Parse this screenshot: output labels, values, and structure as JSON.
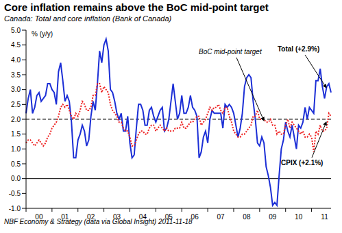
{
  "chart_data": {
    "type": "line",
    "title": "Core inflation remains above the BoC mid-point target",
    "subtitle": "Canada: Total and core inflation (Bank of Canada)",
    "y_label": "% (y/y)",
    "source": "NBF Economy & Strategy (data via Global Insight) 2011-11-18",
    "categories": [
      null,
      null,
      null,
      null,
      null,
      null,
      "00",
      null,
      null,
      null,
      null,
      null,
      null,
      null,
      null,
      null,
      null,
      null,
      "01",
      null,
      null,
      null,
      null,
      null,
      null,
      null,
      null,
      null,
      null,
      null,
      "02",
      null,
      null,
      null,
      null,
      null,
      null,
      null,
      null,
      null,
      null,
      null,
      "03",
      null,
      null,
      null,
      null,
      null,
      null,
      null,
      null,
      null,
      null,
      null,
      "04",
      null,
      null,
      null,
      null,
      null,
      null,
      null,
      null,
      null,
      null,
      null,
      "05",
      null,
      null,
      null,
      null,
      null,
      null,
      null,
      null,
      null,
      null,
      null,
      "06",
      null,
      null,
      null,
      null,
      null,
      null,
      null,
      null,
      null,
      null,
      null,
      "07",
      null,
      null,
      null,
      null,
      null,
      null,
      null,
      null,
      null,
      null,
      null,
      "08",
      null,
      null,
      null,
      null,
      null,
      null,
      null,
      null,
      null,
      null,
      null,
      "09",
      null,
      null,
      null,
      null,
      null,
      null,
      null,
      null,
      null,
      null,
      null,
      "10",
      null,
      null,
      null,
      null,
      null,
      null,
      null,
      null,
      null,
      null,
      null,
      "11",
      null,
      null,
      null
    ],
    "series": [
      {
        "name": "Total (+2.9%)",
        "color": "#1c2fd6",
        "line_style": "solid",
        "values": [
          2.2,
          2.7,
          3.0,
          2.2,
          2.4,
          2.8,
          2.9,
          2.6,
          2.7,
          2.8,
          3.2,
          3.2,
          3.0,
          2.9,
          2.5,
          3.6,
          3.9,
          3.3,
          2.6,
          2.8,
          2.6,
          1.9,
          0.7,
          0.7,
          1.3,
          1.5,
          1.8,
          1.6,
          1.1,
          1.3,
          2.1,
          2.6,
          2.3,
          3.2,
          4.3,
          3.9,
          4.5,
          4.7,
          4.3,
          3.0,
          2.9,
          2.6,
          2.2,
          2.0,
          2.2,
          1.6,
          1.6,
          2.1,
          1.2,
          0.7,
          0.8,
          1.7,
          2.5,
          2.5,
          2.3,
          1.8,
          1.8,
          2.3,
          2.4,
          2.1,
          1.9,
          2.1,
          2.3,
          2.4,
          1.6,
          1.7,
          2.0,
          2.6,
          3.2,
          2.6,
          2.0,
          2.2,
          2.8,
          2.2,
          2.2,
          2.4,
          2.8,
          2.4,
          2.3,
          2.1,
          0.7,
          0.9,
          1.4,
          1.6,
          1.2,
          2.0,
          2.3,
          2.2,
          2.2,
          2.2,
          2.2,
          1.7,
          2.5,
          2.4,
          2.5,
          2.4,
          2.2,
          1.8,
          1.4,
          1.7,
          2.2,
          3.1,
          3.4,
          3.5,
          3.4,
          2.6,
          2.0,
          1.2,
          1.1,
          1.4,
          1.2,
          0.4,
          0.1,
          -0.3,
          -0.9,
          -0.8,
          -0.9,
          0.1,
          1.0,
          1.3,
          1.9,
          1.6,
          1.4,
          1.8,
          1.4,
          1.0,
          1.8,
          1.7,
          1.9,
          2.4,
          2.0,
          2.4,
          2.3,
          2.2,
          3.3,
          3.3,
          3.7,
          3.1,
          2.7,
          3.1,
          3.2,
          2.9
        ]
      },
      {
        "name": "CPIX (+2.1%)",
        "color": "#ee2222",
        "line_style": "dotted",
        "values": [
          1.2,
          1.3,
          1.3,
          1.2,
          1.1,
          1.2,
          1.3,
          1.2,
          1.1,
          1.2,
          1.4,
          1.5,
          1.7,
          1.8,
          1.9,
          2.1,
          2.4,
          2.5,
          2.4,
          2.5,
          2.3,
          2.1,
          2.0,
          2.2,
          2.1,
          2.3,
          2.6,
          2.5,
          2.3,
          2.3,
          2.4,
          2.8,
          2.8,
          3.2,
          3.2,
          2.9,
          3.1,
          3.0,
          2.9,
          2.5,
          2.3,
          2.2,
          2.1,
          1.9,
          1.9,
          1.7,
          1.6,
          1.6,
          1.4,
          1.1,
          1.1,
          1.3,
          1.5,
          1.6,
          1.6,
          1.5,
          1.5,
          1.7,
          1.8,
          1.8,
          1.6,
          1.7,
          1.8,
          1.7,
          1.6,
          1.7,
          1.6,
          1.6,
          1.6,
          1.7,
          1.7,
          1.7,
          1.9,
          1.7,
          1.7,
          1.8,
          1.9,
          1.9,
          2.0,
          2.1,
          2.1,
          1.8,
          1.9,
          2.0,
          2.2,
          2.4,
          2.3,
          2.4,
          2.4,
          2.5,
          2.3,
          2.2,
          2.4,
          2.4,
          2.1,
          1.9,
          1.6,
          1.5,
          1.4,
          1.4,
          1.5,
          1.5,
          1.6,
          1.7,
          1.8,
          2.1,
          2.1,
          2.3,
          2.0,
          2.0,
          2.0,
          1.9,
          1.9,
          2.0,
          1.8,
          1.8,
          1.5,
          1.6,
          1.5,
          1.5,
          1.8,
          2.0,
          1.7,
          1.9,
          1.8,
          1.7,
          1.6,
          1.5,
          1.6,
          1.4,
          1.4,
          1.5,
          1.4,
          0.9,
          1.6,
          1.5,
          1.8,
          1.6,
          1.6,
          1.7,
          2.2,
          2.1
        ]
      }
    ],
    "ylim": [
      -1,
      5
    ],
    "yticks": [
      {
        "value": -1,
        "label": "-1.0"
      },
      {
        "value": -0.5,
        "label": "-0.5"
      },
      {
        "value": 0,
        "label": "0.0"
      },
      {
        "value": 0.5,
        "label": "0.5"
      },
      {
        "value": 1,
        "label": "1.0"
      },
      {
        "value": 1.5,
        "label": "1.5"
      },
      {
        "value": 2,
        "label": "2.0"
      },
      {
        "value": 2.5,
        "label": "2.5"
      },
      {
        "value": 3,
        "label": "3.0"
      },
      {
        "value": 3.5,
        "label": "3.5"
      },
      {
        "value": 4,
        "label": "4.0"
      },
      {
        "value": 4.5,
        "label": "4.5"
      },
      {
        "value": 5,
        "label": "5.0"
      }
    ],
    "grid": false,
    "reference_lines": [
      {
        "y": 0,
        "line_style": "solid"
      }
    ],
    "annotations": [
      {
        "text": "BoC mid-point target",
        "y": 2,
        "line_style": "dashed"
      }
    ]
  }
}
